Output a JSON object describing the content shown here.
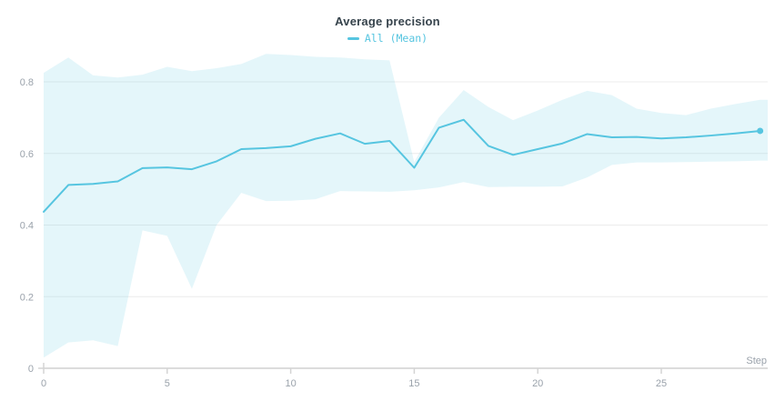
{
  "title": "Average precision",
  "legend": {
    "label": "All (Mean)"
  },
  "colors": {
    "line": "#56c5e0",
    "band": "rgba(86,197,224,0.16)",
    "title_text": "#36434c",
    "axis_text": "#9aa2ab"
  },
  "axes": {
    "x_label": "Step",
    "x_ticks": [
      0,
      5,
      10,
      15,
      20,
      25
    ],
    "y_ticks": [
      0,
      0.2,
      0.4,
      0.6,
      0.8
    ],
    "y_tick_labels": [
      "0",
      "0.2",
      "0.4",
      "0.6",
      "0.8"
    ]
  },
  "chart_data": {
    "type": "line",
    "title": "Average precision",
    "xlabel": "Step",
    "ylabel": "",
    "xlim": [
      0,
      29.3
    ],
    "ylim": [
      0,
      0.9
    ],
    "grid": true,
    "legend_position": "top",
    "x": [
      0,
      1,
      2,
      3,
      4,
      5,
      6,
      7,
      8,
      9,
      10,
      11,
      12,
      13,
      14,
      15,
      16,
      17,
      18,
      19,
      20,
      21,
      22,
      23,
      24,
      25,
      26,
      27,
      28,
      29
    ],
    "series": [
      {
        "name": "All (Mean)",
        "role": "mean",
        "values": [
          0.437,
          0.512,
          0.515,
          0.522,
          0.559,
          0.561,
          0.556,
          0.578,
          0.612,
          0.615,
          0.62,
          0.641,
          0.656,
          0.627,
          0.635,
          0.56,
          0.672,
          0.694,
          0.621,
          0.596,
          0.612,
          0.628,
          0.654,
          0.645,
          0.646,
          0.642,
          0.645,
          0.65,
          0.656,
          0.663
        ]
      },
      {
        "name": "band-upper",
        "role": "band_upper",
        "values": [
          0.825,
          0.868,
          0.818,
          0.812,
          0.82,
          0.842,
          0.83,
          0.838,
          0.85,
          0.878,
          0.875,
          0.87,
          0.868,
          0.863,
          0.86,
          0.576,
          0.7,
          0.777,
          0.73,
          0.693,
          0.72,
          0.75,
          0.775,
          0.763,
          0.725,
          0.713,
          0.707,
          0.725,
          0.738,
          0.75
        ]
      },
      {
        "name": "band-lower",
        "role": "band_lower",
        "values": [
          0.03,
          0.072,
          0.078,
          0.062,
          0.385,
          0.37,
          0.222,
          0.4,
          0.49,
          0.467,
          0.468,
          0.472,
          0.495,
          0.494,
          0.493,
          0.497,
          0.505,
          0.52,
          0.506,
          0.507,
          0.507,
          0.508,
          0.533,
          0.568,
          0.575,
          0.575,
          0.576,
          0.577,
          0.578,
          0.58
        ]
      }
    ],
    "end_marker": {
      "x": 29,
      "value": 0.663
    }
  }
}
